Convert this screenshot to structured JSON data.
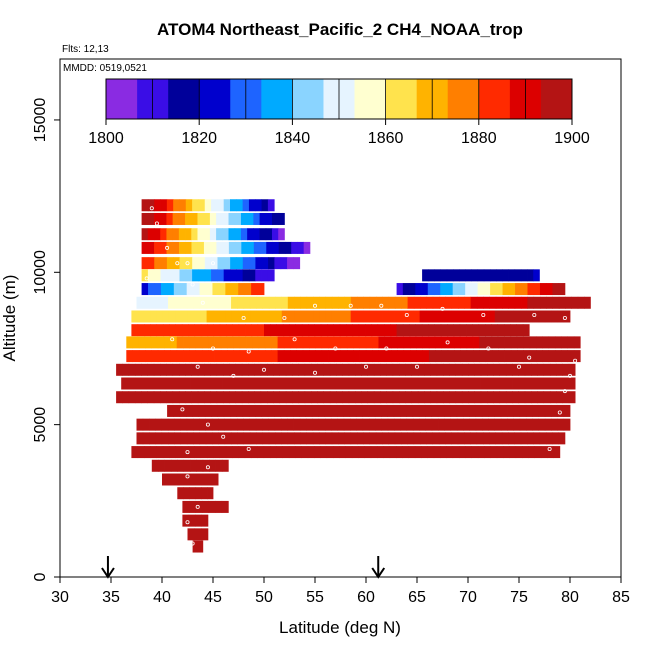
{
  "chart_data": {
    "type": "heatmap",
    "title": "ATOM4 Northeast_Pacific_2 CH4_NOAA_trop",
    "flights_note": "Flts: 12,13",
    "dates_note": "MMDD: 0519,0521",
    "xlabel": "Latitude (deg N)",
    "ylabel": "Altitude (m)",
    "xlim": [
      30,
      85
    ],
    "ylim": [
      0,
      17000
    ],
    "xticks": [
      "30",
      "35",
      "40",
      "45",
      "50",
      "55",
      "60",
      "65",
      "70",
      "75",
      "80",
      "85"
    ],
    "yticks": [
      "0",
      "5000",
      "10000",
      "15000"
    ],
    "colorbar": {
      "min": 1800,
      "max": 1900,
      "ticks": [
        "1800",
        "1820",
        "1840",
        "1860",
        "1880",
        "1900"
      ],
      "colors": [
        "#8a2be2",
        "#3a0de6",
        "#00009a",
        "#0000cd",
        "#1e64ff",
        "#00aaff",
        "#8ad4ff",
        "#e6f4ff",
        "#ffffd0",
        "#ffe34d",
        "#ffb300",
        "#ff7f00",
        "#ff2a00",
        "#dc0000",
        "#b41414"
      ]
    },
    "arrows_latitude": [
      34.7,
      61.2
    ],
    "rows": [
      {
        "alt": 12200,
        "lat0": 38.0,
        "lat1": 51.0,
        "c0": 1900,
        "c1": 1812
      },
      {
        "alt": 11750,
        "lat0": 38.0,
        "lat1": 52.0,
        "c0": 1898,
        "c1": 1815
      },
      {
        "alt": 11250,
        "lat0": 38.0,
        "lat1": 52.0,
        "c0": 1895,
        "c1": 1806
      },
      {
        "alt": 10800,
        "lat0": 38.0,
        "lat1": 54.5,
        "c0": 1890,
        "c1": 1805
      },
      {
        "alt": 10300,
        "lat0": 38.0,
        "lat1": 53.5,
        "c0": 1885,
        "c1": 1803
      },
      {
        "alt": 9900,
        "lat0": 38.0,
        "lat1": 51.0,
        "c0": 1860,
        "c1": 1808
      },
      {
        "alt": 9900,
        "lat0": 65.5,
        "lat1": 77.0,
        "c0": 1815,
        "c1": 1820
      },
      {
        "alt": 9450,
        "lat0": 38.0,
        "lat1": 50.0,
        "c0": 1825,
        "c1": 1885
      },
      {
        "alt": 9450,
        "lat0": 63.0,
        "lat1": 79.5,
        "c0": 1810,
        "c1": 1900
      },
      {
        "alt": 9000,
        "lat0": 37.5,
        "lat1": 82.0,
        "c0": 1850,
        "c1": 1900
      },
      {
        "alt": 8550,
        "lat0": 37.0,
        "lat1": 80.0,
        "c0": 1860,
        "c1": 1900
      },
      {
        "alt": 8100,
        "lat0": 37.0,
        "lat1": 76.0,
        "c0": 1880,
        "c1": 1900
      },
      {
        "alt": 7700,
        "lat0": 36.5,
        "lat1": 81.0,
        "c0": 1870,
        "c1": 1900
      },
      {
        "alt": 7250,
        "lat0": 36.5,
        "lat1": 81.0,
        "c0": 1880,
        "c1": 1900
      },
      {
        "alt": 6800,
        "lat0": 35.5,
        "lat1": 80.5,
        "c0": 1895,
        "c1": 1900
      },
      {
        "alt": 6350,
        "lat0": 36.0,
        "lat1": 80.5,
        "c0": 1895,
        "c1": 1900
      },
      {
        "alt": 5900,
        "lat0": 35.5,
        "lat1": 80.5,
        "c0": 1900,
        "c1": 1900
      },
      {
        "alt": 5450,
        "lat0": 40.5,
        "lat1": 80.0,
        "c0": 1900,
        "c1": 1900
      },
      {
        "alt": 5000,
        "lat0": 37.5,
        "lat1": 80.0,
        "c0": 1900,
        "c1": 1900
      },
      {
        "alt": 4550,
        "lat0": 37.5,
        "lat1": 79.5,
        "c0": 1900,
        "c1": 1900
      },
      {
        "alt": 4100,
        "lat0": 37.0,
        "lat1": 79.0,
        "c0": 1900,
        "c1": 1900
      },
      {
        "alt": 3650,
        "lat0": 39.0,
        "lat1": 46.5,
        "c0": 1900,
        "c1": 1900
      },
      {
        "alt": 3200,
        "lat0": 40.0,
        "lat1": 45.5,
        "c0": 1900,
        "c1": 1900
      },
      {
        "alt": 2750,
        "lat0": 41.5,
        "lat1": 45.0,
        "c0": 1900,
        "c1": 1900
      },
      {
        "alt": 2300,
        "lat0": 42.0,
        "lat1": 46.5,
        "c0": 1900,
        "c1": 1900
      },
      {
        "alt": 1850,
        "lat0": 42.0,
        "lat1": 44.5,
        "c0": 1900,
        "c1": 1900
      },
      {
        "alt": 1400,
        "lat0": 42.5,
        "lat1": 44.5,
        "c0": 1900,
        "c1": 1900
      },
      {
        "alt": 1000,
        "lat0": 43.0,
        "lat1": 44.0,
        "c0": 1900,
        "c1": 1900
      }
    ],
    "samples": [
      [
        39.0,
        12100
      ],
      [
        39.5,
        11600
      ],
      [
        40.5,
        10800
      ],
      [
        41.5,
        10300
      ],
      [
        42.5,
        10300
      ],
      [
        45.0,
        10300
      ],
      [
        38.5,
        9800
      ],
      [
        43.0,
        9600
      ],
      [
        44.0,
        9000
      ],
      [
        48.0,
        8500
      ],
      [
        52.0,
        8500
      ],
      [
        55.0,
        8900
      ],
      [
        58.5,
        8900
      ],
      [
        61.5,
        8900
      ],
      [
        64.0,
        8600
      ],
      [
        67.5,
        8800
      ],
      [
        71.5,
        8600
      ],
      [
        76.5,
        8600
      ],
      [
        79.5,
        8500
      ],
      [
        41.0,
        7800
      ],
      [
        45.0,
        7500
      ],
      [
        48.5,
        7400
      ],
      [
        53.0,
        7800
      ],
      [
        57.0,
        7500
      ],
      [
        62.0,
        7500
      ],
      [
        68.0,
        7700
      ],
      [
        72.0,
        7500
      ],
      [
        76.0,
        7200
      ],
      [
        80.5,
        7100
      ],
      [
        43.5,
        6900
      ],
      [
        47.0,
        6600
      ],
      [
        50.0,
        6800
      ],
      [
        55.0,
        6700
      ],
      [
        60.0,
        6900
      ],
      [
        65.0,
        6900
      ],
      [
        75.0,
        6900
      ],
      [
        79.5,
        6100
      ],
      [
        42.0,
        5500
      ],
      [
        44.5,
        5000
      ],
      [
        46.0,
        4600
      ],
      [
        48.5,
        4200
      ],
      [
        42.5,
        4100
      ],
      [
        44.5,
        3600
      ],
      [
        42.5,
        3300
      ],
      [
        43.5,
        2300
      ],
      [
        42.5,
        1800
      ],
      [
        43.0,
        1100
      ],
      [
        78.0,
        4200
      ],
      [
        79.0,
        5400
      ],
      [
        80.0,
        6600
      ]
    ]
  }
}
